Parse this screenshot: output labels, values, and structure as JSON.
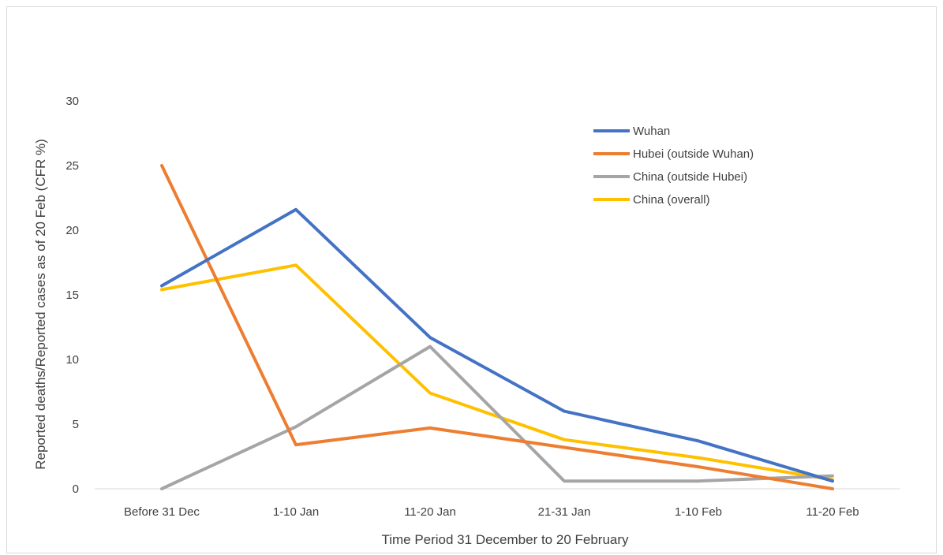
{
  "chart_data": {
    "type": "line",
    "title": "",
    "xlabel": "Time Period 31 December to 20 February",
    "ylabel": "Reported deaths/Reported cases as of 20 Feb (CFR %)",
    "categories": [
      "Before 31 Dec",
      "1-10 Jan",
      "11-20 Jan",
      "21-31 Jan",
      "1-10 Feb",
      "11-20 Feb"
    ],
    "ylim": [
      0,
      30
    ],
    "yticks": [
      0,
      5,
      10,
      15,
      20,
      25,
      30
    ],
    "grid": false,
    "legend_position": "top-right",
    "series": [
      {
        "name": "Wuhan",
        "color": "#4472C4",
        "values": [
          15.7,
          21.6,
          11.7,
          6.0,
          3.7,
          0.6
        ]
      },
      {
        "name": "Hubei (outside Wuhan)",
        "color": "#ED7D31",
        "values": [
          25.0,
          3.4,
          4.7,
          3.2,
          1.7,
          0.0
        ]
      },
      {
        "name": "China (outside Hubei)",
        "color": "#A5A5A5",
        "values": [
          0.0,
          4.8,
          11.0,
          0.6,
          0.6,
          1.0
        ]
      },
      {
        "name": "China (overall)",
        "color": "#FFC000",
        "values": [
          15.4,
          17.3,
          7.4,
          3.8,
          2.4,
          0.7
        ]
      }
    ]
  }
}
